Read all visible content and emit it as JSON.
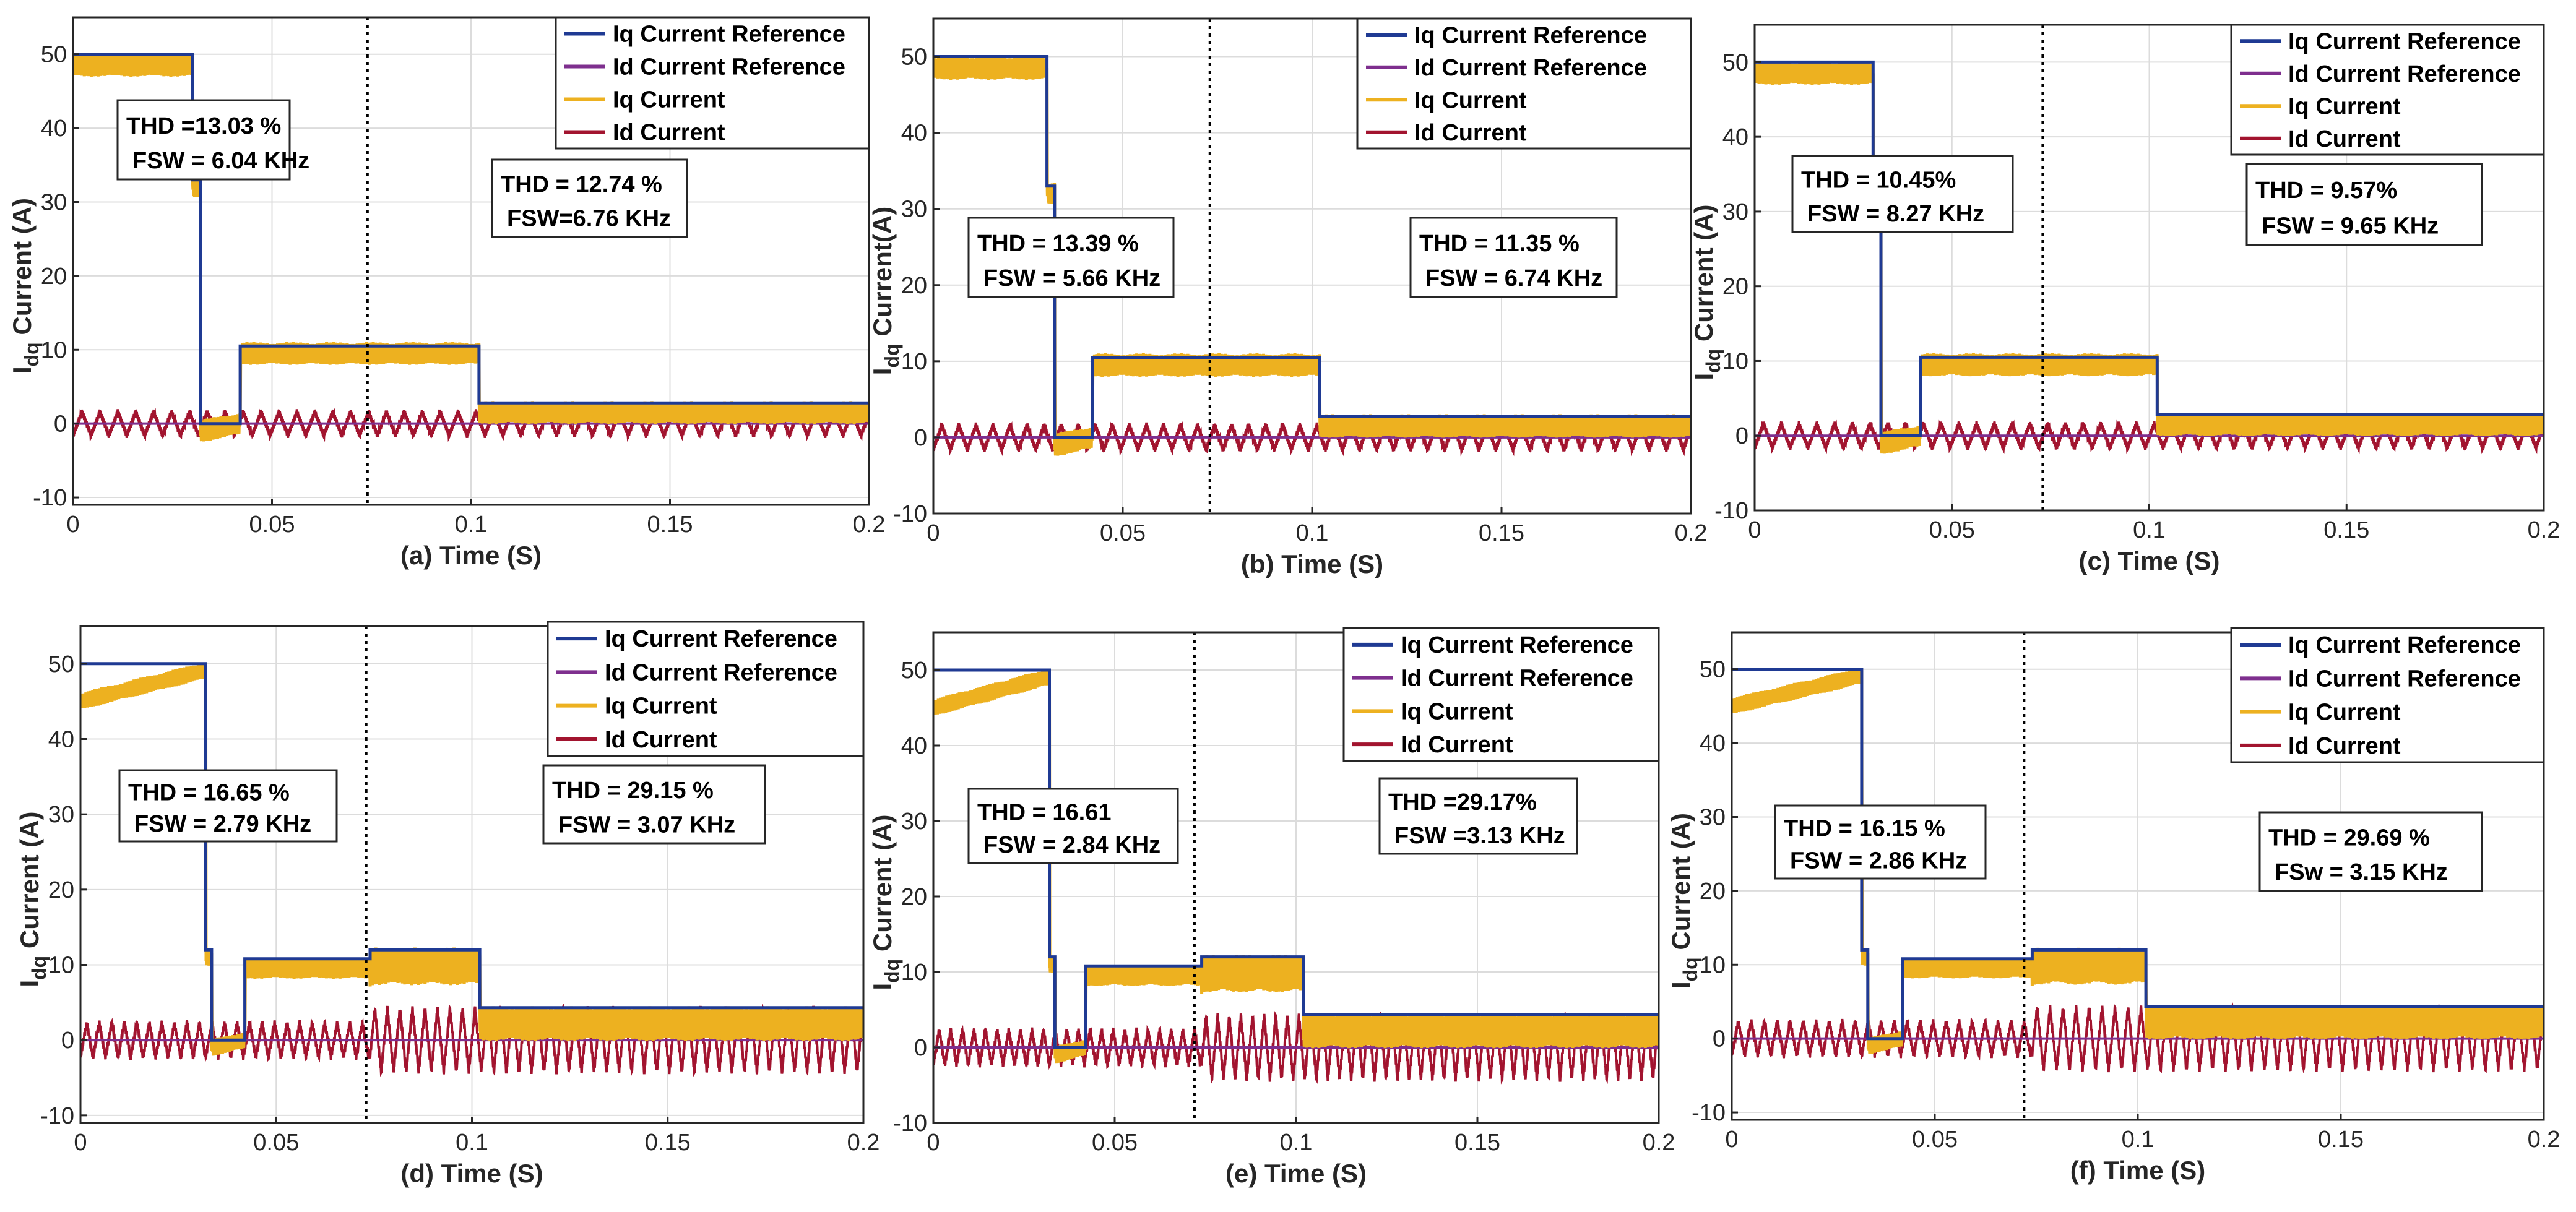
{
  "chart_data": [
    {
      "type": "line",
      "panel": "a",
      "xlabel": "(a) Time (S)",
      "ylabel": "I",
      "ylabel_sub": "dq",
      "ylabel_tail": " Current (A)",
      "xlim": [
        0,
        0.2
      ],
      "ylim": [
        -11,
        55
      ],
      "xticks": [
        0,
        0.05,
        0.1,
        0.15,
        0.2
      ],
      "xtick_labels": [
        "0",
        "0.05",
        "0.1",
        "0.15",
        "0.2"
      ],
      "yticks": [
        -10,
        0,
        10,
        20,
        30,
        40,
        50
      ],
      "grid": true,
      "legend_position": "top-right",
      "marker_line_x": 0.074,
      "segments": {
        "iq_ref": [
          [
            0,
            50
          ],
          [
            0.03,
            50
          ],
          [
            0.03,
            32
          ],
          [
            0.032,
            32
          ],
          [
            0.032,
            0
          ],
          [
            0.042,
            0
          ],
          [
            0.042,
            10.8
          ],
          [
            0.102,
            10.8
          ],
          [
            0.102,
            3
          ],
          [
            0.2,
            3
          ]
        ],
        "iq_ripple": [
          [
            0,
            49,
            1.5
          ],
          [
            0.03,
            32,
            1.5
          ],
          [
            0.032,
            0,
            2
          ],
          [
            0.042,
            10,
            2
          ],
          [
            0.102,
            2,
            1.5
          ],
          [
            0.2,
            2,
            1.5
          ]
        ],
        "id_peak": 2.5,
        "id_period": 0.0045
      },
      "series": [
        {
          "name": "Iq Current Reference",
          "color": "#1f3a93"
        },
        {
          "name": "Id Current Reference",
          "color": "#7e2f8e"
        },
        {
          "name": "Iq Current",
          "color": "#edb120"
        },
        {
          "name": "Id Current",
          "color": "#a2142f"
        }
      ],
      "annotations": [
        {
          "line1": "THD =13.03 %",
          "line2": "FSW = 6.04 KHz"
        },
        {
          "line1": "THD = 12.74 %",
          "line2": "FSW=6.76 KHz"
        }
      ]
    },
    {
      "type": "line",
      "panel": "b",
      "xlabel": "(b) Time (S)",
      "ylabel": "I",
      "ylabel_sub": "dq",
      "ylabel_tail": " Current(A)",
      "xlim": [
        0,
        0.2
      ],
      "ylim": [
        -10,
        55
      ],
      "xticks": [
        0,
        0.05,
        0.1,
        0.15,
        0.2
      ],
      "xtick_labels": [
        "0",
        "0.05",
        "0.1",
        "0.15",
        "0.2"
      ],
      "yticks": [
        -10,
        0,
        10,
        20,
        30,
        40,
        50
      ],
      "grid": true,
      "legend_position": "top-right",
      "marker_line_x": 0.073,
      "series": [
        {
          "name": "Iq Current Reference",
          "color": "#1f3a93"
        },
        {
          "name": "Id Current Reference",
          "color": "#7e2f8e"
        },
        {
          "name": "Iq Current",
          "color": "#edb120"
        },
        {
          "name": "Id Current",
          "color": "#a2142f"
        }
      ],
      "annotations": [
        {
          "line1": "THD = 13.39 %",
          "line2": "FSW = 5.66 KHz"
        },
        {
          "line1": "THD = 11.35 %",
          "line2": "FSW = 6.74 KHz"
        }
      ]
    },
    {
      "type": "line",
      "panel": "c",
      "xlabel": "(c) Time (S)",
      "ylabel": "I",
      "ylabel_sub": "dq",
      "ylabel_tail": " Current (A)",
      "xlim": [
        0,
        0.2
      ],
      "ylim": [
        -10,
        55
      ],
      "xticks": [
        0,
        0.05,
        0.1,
        0.15,
        0.2
      ],
      "xtick_labels": [
        "0",
        "0.05",
        "0.1",
        "0.15",
        "0.2"
      ],
      "yticks": [
        -10,
        0,
        10,
        20,
        30,
        40,
        50
      ],
      "grid": true,
      "legend_position": "top-right",
      "marker_line_x": 0.073,
      "series": [
        {
          "name": "Iq Current Reference",
          "color": "#1f3a93"
        },
        {
          "name": "Id Current Reference",
          "color": "#7e2f8e"
        },
        {
          "name": "Iq Current",
          "color": "#edb120"
        },
        {
          "name": "Id Current",
          "color": "#a2142f"
        }
      ],
      "annotations": [
        {
          "line1": "THD = 10.45%",
          "line2": "FSW = 8.27 KHz"
        },
        {
          "line1": "THD = 9.57%",
          "line2": "FSW = 9.65 KHz"
        }
      ]
    },
    {
      "type": "line",
      "panel": "d",
      "xlabel": "(d) Time (S)",
      "ylabel": "I",
      "ylabel_sub": "dq",
      "ylabel_tail": " Current (A)",
      "xlim": [
        0,
        0.2
      ],
      "ylim": [
        -11,
        55
      ],
      "xticks": [
        0,
        0.05,
        0.1,
        0.15,
        0.2
      ],
      "xtick_labels": [
        "0",
        "0.05",
        "0.1",
        "0.15",
        "0.2"
      ],
      "yticks": [
        -10,
        0,
        10,
        20,
        30,
        40,
        50
      ],
      "grid": true,
      "legend_position": "top-right",
      "marker_line_x": 0.073,
      "series": [
        {
          "name": "Iq Current Reference",
          "color": "#1f3a93"
        },
        {
          "name": "Id Current Reference",
          "color": "#7e2f8e"
        },
        {
          "name": "Iq Current",
          "color": "#edb120"
        },
        {
          "name": "Id Current",
          "color": "#a2142f"
        }
      ],
      "annotations": [
        {
          "line1": "THD = 16.65 %",
          "line2": "FSW = 2.79 KHz"
        },
        {
          "line1": "THD = 29.15 %",
          "line2": "FSW = 3.07 KHz"
        }
      ]
    },
    {
      "type": "line",
      "panel": "e",
      "xlabel": "(e) Time (S)",
      "ylabel": "I",
      "ylabel_sub": "dq",
      "ylabel_tail": " Current (A)",
      "xlim": [
        0,
        0.2
      ],
      "ylim": [
        -10,
        55
      ],
      "xticks": [
        0,
        0.05,
        0.1,
        0.15,
        0.2
      ],
      "xtick_labels": [
        "0",
        "0.05",
        "0.1",
        "0.15",
        "0.2"
      ],
      "yticks": [
        -10,
        0,
        10,
        20,
        30,
        40,
        50
      ],
      "grid": true,
      "legend_position": "top-right",
      "marker_line_x": 0.072,
      "series": [
        {
          "name": "Iq Current Reference",
          "color": "#1f3a93"
        },
        {
          "name": "Id Current Reference",
          "color": "#7e2f8e"
        },
        {
          "name": "Iq Current",
          "color": "#edb120"
        },
        {
          "name": "Id Current",
          "color": "#a2142f"
        }
      ],
      "annotations": [
        {
          "line1": "THD = 16.61",
          "line2": "FSW = 2.84 KHz"
        },
        {
          "line1": "THD =29.17%",
          "line2": "FSW =3.13 KHz"
        }
      ]
    },
    {
      "type": "line",
      "panel": "f",
      "xlabel": "(f) Time (S)",
      "ylabel": "I",
      "ylabel_sub": "dq",
      "ylabel_tail": " Current (A)",
      "xlim": [
        0,
        0.2
      ],
      "ylim": [
        -11,
        55
      ],
      "xticks": [
        0,
        0.05,
        0.1,
        0.15,
        0.2
      ],
      "xtick_labels": [
        "0",
        "0.05",
        "0.1",
        "0.15",
        "0.2"
      ],
      "yticks": [
        -10,
        0,
        10,
        20,
        30,
        40,
        50
      ],
      "grid": true,
      "legend_position": "top-right",
      "marker_line_x": 0.072,
      "series": [
        {
          "name": "Iq Current Reference",
          "color": "#1f3a93"
        },
        {
          "name": "Id Current Reference",
          "color": "#7e2f8e"
        },
        {
          "name": "Iq Current",
          "color": "#edb120"
        },
        {
          "name": "Id Current",
          "color": "#a2142f"
        }
      ],
      "annotations": [
        {
          "line1": "THD = 16.15 %",
          "line2": "FSW = 2.86 KHz"
        },
        {
          "line1": "THD = 29.69 %",
          "line2": "FSw = 3.15 KHz"
        }
      ]
    }
  ],
  "waveforms": {
    "top_row": {
      "iq_ref": [
        [
          0,
          50
        ],
        [
          0.03,
          50
        ],
        [
          0.03,
          33
        ],
        [
          0.032,
          33
        ],
        [
          0.032,
          0
        ],
        [
          0.042,
          0
        ],
        [
          0.042,
          10.5
        ],
        [
          0.102,
          10.5
        ],
        [
          0.102,
          2.8
        ],
        [
          0.2,
          2.8
        ]
      ],
      "iq_mean": [
        [
          0,
          48.5
        ],
        [
          0.03,
          48.5
        ],
        [
          0.0301,
          32
        ],
        [
          0.032,
          32
        ],
        [
          0.0321,
          -1
        ],
        [
          0.042,
          0
        ],
        [
          0.0421,
          9.5
        ],
        [
          0.102,
          9.5
        ],
        [
          0.1021,
          1.5
        ],
        [
          0.2,
          1.5
        ]
      ],
      "iq_ripple": 1.6,
      "id_amp": 1.6,
      "id_period": 0.0045
    },
    "bottom_row": {
      "iq_ref": [
        [
          0,
          50
        ],
        [
          0.032,
          50
        ],
        [
          0.032,
          12
        ],
        [
          0.0335,
          12
        ],
        [
          0.0335,
          0
        ],
        [
          0.042,
          0
        ],
        [
          0.042,
          10.8
        ],
        [
          0.074,
          10.8
        ],
        [
          0.074,
          12
        ],
        [
          0.102,
          12
        ],
        [
          0.102,
          4.3
        ],
        [
          0.2,
          4.3
        ]
      ],
      "iq_mean": [
        [
          0,
          45
        ],
        [
          0.031,
          49
        ],
        [
          0.032,
          49
        ],
        [
          0.0321,
          11
        ],
        [
          0.0335,
          11
        ],
        [
          0.0336,
          -1
        ],
        [
          0.042,
          0
        ],
        [
          0.0421,
          9.5
        ],
        [
          0.074,
          9.5
        ],
        [
          0.0741,
          9.8
        ],
        [
          0.102,
          9.8
        ],
        [
          0.1021,
          2.2
        ],
        [
          0.2,
          2.2
        ]
      ],
      "iq_ripple_segments": [
        [
          0,
          0.042,
          1.2
        ],
        [
          0.042,
          0.074,
          1.4
        ],
        [
          0.074,
          0.102,
          2.6
        ],
        [
          0.102,
          0.2,
          2.4
        ]
      ],
      "id_amp_segments": [
        [
          0,
          0.074,
          2.3
        ],
        [
          0.074,
          0.2,
          4.2
        ]
      ],
      "id_period": 0.0032
    }
  }
}
